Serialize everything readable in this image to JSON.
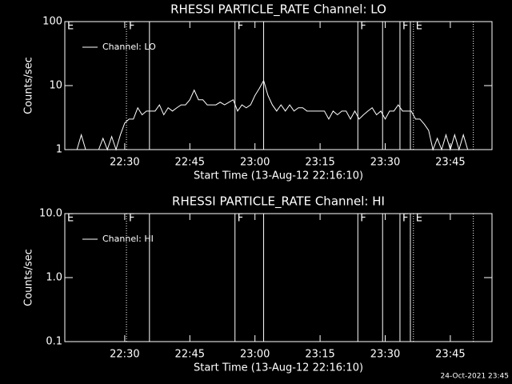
{
  "chart_data": [
    {
      "type": "line",
      "title": "RHESSI PARTICLE_RATE Channel: LO",
      "x_label": "Start Time (13-Aug-12 22:16:10)",
      "y_label": "Counts/sec",
      "xlim": [
        1336.2,
        1434.6
      ],
      "ylim": [
        1,
        100
      ],
      "log_y": true,
      "xticks": [
        {
          "value": 1350,
          "label": "22:30"
        },
        {
          "value": 1365,
          "label": "22:45"
        },
        {
          "value": 1380,
          "label": "23:00"
        },
        {
          "value": 1395,
          "label": "23:15"
        },
        {
          "value": 1410,
          "label": "23:30"
        },
        {
          "value": 1425,
          "label": "23:45"
        }
      ],
      "yticks": [
        1,
        10,
        100
      ],
      "legend": "top-left",
      "markers": [
        {
          "x": 1336.2,
          "style": "solid",
          "label": "E"
        },
        {
          "x": 1350.4,
          "style": "dotted",
          "label": "F"
        },
        {
          "x": 1355.7,
          "style": "solid"
        },
        {
          "x": 1375.4,
          "style": "solid",
          "label": "F"
        },
        {
          "x": 1382.0,
          "style": "solid"
        },
        {
          "x": 1403.7,
          "style": "solid",
          "label": "F"
        },
        {
          "x": 1409.4,
          "style": "solid"
        },
        {
          "x": 1413.4,
          "style": "solid",
          "label": "F"
        },
        {
          "x": 1415.8,
          "style": "solid"
        },
        {
          "x": 1416.5,
          "style": "dotted",
          "label": "E"
        },
        {
          "x": 1430.3,
          "style": "dotted"
        }
      ],
      "x": [
        1337,
        1338,
        1339,
        1340,
        1341,
        1342,
        1343,
        1344,
        1345,
        1346,
        1347,
        1348,
        1349,
        1350,
        1351,
        1352,
        1353,
        1354,
        1355,
        1356,
        1357,
        1358,
        1359,
        1360,
        1361,
        1362,
        1363,
        1364,
        1365,
        1366,
        1367,
        1368,
        1369,
        1370,
        1371,
        1372,
        1373,
        1374,
        1375,
        1376,
        1377,
        1378,
        1379,
        1380,
        1381,
        1382,
        1383,
        1384,
        1385,
        1386,
        1387,
        1388,
        1389,
        1390,
        1391,
        1392,
        1393,
        1394,
        1395,
        1396,
        1397,
        1398,
        1399,
        1400,
        1401,
        1402,
        1403,
        1404,
        1405,
        1406,
        1407,
        1408,
        1409,
        1410,
        1411,
        1412,
        1413,
        1414,
        1415,
        1416,
        1417,
        1418,
        1419,
        1420,
        1421,
        1422,
        1423,
        1424,
        1425,
        1426,
        1427,
        1428,
        1429
      ],
      "series": [
        {
          "name": "Channel: LO",
          "color": "#ffffff",
          "values": [
            1,
            1,
            1,
            1.7,
            1,
            1,
            1,
            1,
            1.5,
            1,
            1.6,
            1,
            1.7,
            2.6,
            3,
            3,
            4.5,
            3.5,
            4,
            4,
            4,
            5,
            3.5,
            4.5,
            4,
            4.5,
            5,
            5,
            6,
            8.5,
            6,
            6,
            5,
            5,
            5,
            5.5,
            5,
            5.5,
            6,
            4,
            5,
            4.5,
            5,
            7,
            9,
            12,
            7,
            5,
            4,
            5,
            4,
            5,
            4,
            4.5,
            4.5,
            4,
            4,
            4,
            4,
            4,
            3,
            4,
            3.5,
            4,
            4,
            3,
            4,
            3,
            3.5,
            4,
            4.5,
            3.5,
            4,
            3,
            4,
            4,
            5,
            4,
            4,
            4,
            3,
            3,
            2.5,
            2,
            1,
            1.5,
            1,
            1.7,
            1,
            1.7,
            1,
            1.7,
            1
          ]
        }
      ]
    },
    {
      "type": "line",
      "title": "RHESSI PARTICLE_RATE Channel: HI",
      "x_label": "Start Time (13-Aug-12 22:16:10)",
      "y_label": "Counts/sec",
      "xlim": [
        1336.2,
        1434.6
      ],
      "ylim": [
        0.1,
        10
      ],
      "log_y": true,
      "xticks": [
        {
          "value": 1350,
          "label": "22:30"
        },
        {
          "value": 1365,
          "label": "22:45"
        },
        {
          "value": 1380,
          "label": "23:00"
        },
        {
          "value": 1395,
          "label": "23:15"
        },
        {
          "value": 1410,
          "label": "23:30"
        },
        {
          "value": 1425,
          "label": "23:45"
        }
      ],
      "yticks": [
        0.1,
        {
          "value": 1,
          "label": "1.0"
        },
        {
          "value": 10,
          "label": "10.0"
        }
      ],
      "legend": "top-left",
      "markers": [
        {
          "x": 1336.2,
          "style": "solid",
          "label": "E"
        },
        {
          "x": 1350.4,
          "style": "dotted",
          "label": "F"
        },
        {
          "x": 1355.7,
          "style": "solid"
        },
        {
          "x": 1375.4,
          "style": "solid",
          "label": "F"
        },
        {
          "x": 1382.0,
          "style": "solid"
        },
        {
          "x": 1403.7,
          "style": "solid",
          "label": "F"
        },
        {
          "x": 1409.4,
          "style": "solid"
        },
        {
          "x": 1413.4,
          "style": "solid",
          "label": "F"
        },
        {
          "x": 1415.8,
          "style": "solid"
        },
        {
          "x": 1416.5,
          "style": "dotted",
          "label": "E"
        },
        {
          "x": 1430.3,
          "style": "dotted"
        }
      ],
      "x": [],
      "series": [
        {
          "name": "Channel: HI",
          "color": "#ffffff",
          "values": []
        }
      ]
    }
  ],
  "footer": "24-Oct-2021 23:45"
}
